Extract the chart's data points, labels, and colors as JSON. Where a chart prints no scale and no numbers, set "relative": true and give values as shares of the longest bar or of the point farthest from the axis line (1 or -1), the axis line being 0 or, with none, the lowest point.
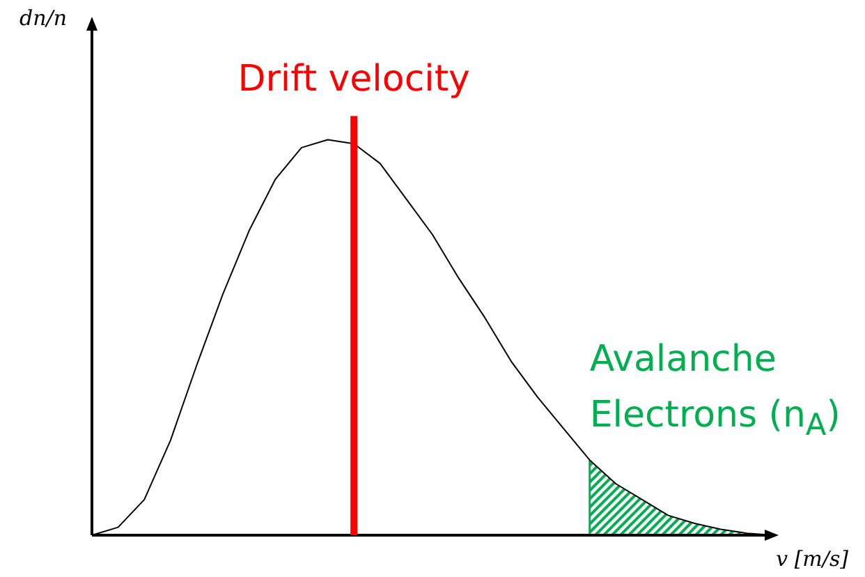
{
  "chart_data": {
    "type": "line",
    "relative": true,
    "xlabel": "v [m/s]",
    "tick_labels": false,
    "grid": false,
    "legend": false,
    "marker": "none",
    "line_style": "solid",
    "categories": [
      null,
      null,
      null,
      null,
      null,
      null,
      null,
      null,
      null,
      null,
      null,
      null,
      null,
      null,
      null,
      null,
      null,
      null,
      null,
      null,
      null,
      null,
      null,
      null,
      null,
      null,
      null
    ],
    "series": [
      {
        "color": "#000000",
        "values": [
          0,
          0.02,
          0.09,
          0.24,
          0.43,
          0.61,
          0.77,
          0.9,
          0.98,
          1.0,
          0.99,
          0.94,
          0.85,
          0.76,
          0.65,
          0.55,
          0.44,
          0.35,
          0.27,
          0.19,
          0.13,
          0.09,
          0.05,
          0.03,
          0.015,
          0.005,
          0
        ]
      }
    ],
    "annotations": [
      "dn/n",
      "Drift velocity",
      "Avalanche Electrons (n$_{A}$)"
    ]
  }
}
